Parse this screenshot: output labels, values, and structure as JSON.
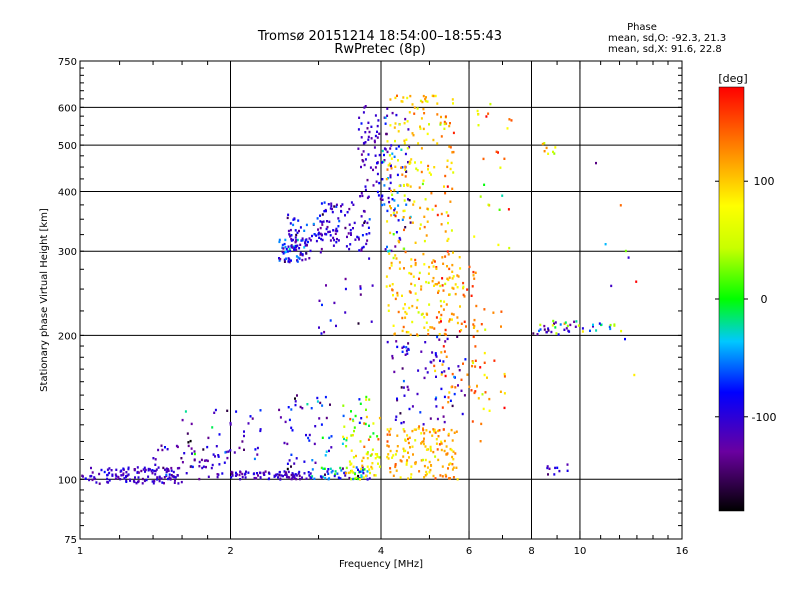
{
  "chart_data": {
    "type": "scatter",
    "title": "Tromsø 20151214 18:54:00–18:55:43",
    "subtitle": "RwPretec (8p)",
    "xlabel": "Frequency [MHz]",
    "ylabel": "Stationary phase Virtual Height [km]",
    "x_scale": "log",
    "y_scale": "log",
    "xlim": [
      1,
      16
    ],
    "ylim": [
      75,
      750
    ],
    "x_ticks": [
      1,
      2,
      4,
      6,
      8,
      10,
      16
    ],
    "x_tick_labels": [
      "1",
      "2",
      "4",
      "6",
      "8",
      "10",
      "16"
    ],
    "y_ticks": [
      75,
      100,
      200,
      300,
      400,
      500,
      600,
      750
    ],
    "y_tick_labels": [
      "75",
      "100",
      "200",
      "300",
      "400",
      "500",
      "600",
      "750"
    ],
    "grid": true,
    "stats": {
      "heading": "Phase",
      "line_o": "mean, sd,O: -92.3, 21.3",
      "line_x": "mean, sd,X:  91.6, 22.8"
    },
    "colorbar": {
      "label": "[deg]",
      "range": [
        -180,
        180
      ],
      "ticks": [
        100,
        0,
        -100
      ],
      "tick_labels": [
        "100",
        "0",
        "-100"
      ]
    },
    "clusters": [
      {
        "x_range": [
          1.0,
          1.6
        ],
        "y_range": [
          98,
          106
        ],
        "phase_mean": -110,
        "phase_sd": 15,
        "count": 130
      },
      {
        "x_range": [
          1.4,
          2.0
        ],
        "y_range": [
          100,
          118
        ],
        "phase_mean": -105,
        "phase_sd": 20,
        "count": 60
      },
      {
        "x_range": [
          1.6,
          2.3
        ],
        "y_range": [
          110,
          140
        ],
        "phase_mean": -95,
        "phase_sd": 40,
        "count": 35
      },
      {
        "x_range": [
          2.0,
          2.9
        ],
        "y_range": [
          100,
          104
        ],
        "phase_mean": -110,
        "phase_sd": 15,
        "count": 90
      },
      {
        "x_range": [
          2.5,
          3.2
        ],
        "y_range": [
          105,
          150
        ],
        "phase_mean": -90,
        "phase_sd": 40,
        "count": 50
      },
      {
        "x_range": [
          2.9,
          3.8
        ],
        "y_range": [
          100,
          106
        ],
        "phase_mean": -60,
        "phase_sd": 50,
        "count": 60
      },
      {
        "x_range": [
          3.4,
          4.0
        ],
        "y_range": [
          100,
          115
        ],
        "phase_mean": 80,
        "phase_sd": 25,
        "count": 40
      },
      {
        "x_range": [
          3.3,
          4.0
        ],
        "y_range": [
          115,
          150
        ],
        "phase_mean": 20,
        "phase_sd": 70,
        "count": 40
      },
      {
        "x_range": [
          2.5,
          2.9
        ],
        "y_range": [
          285,
          320
        ],
        "phase_mean": -90,
        "phase_sd": 30,
        "count": 80
      },
      {
        "x_range": [
          2.6,
          3.2
        ],
        "y_range": [
          315,
          360
        ],
        "phase_mean": -100,
        "phase_sd": 25,
        "count": 40
      },
      {
        "x_range": [
          3.0,
          3.8
        ],
        "y_range": [
          300,
          380
        ],
        "phase_mean": -110,
        "phase_sd": 20,
        "count": 90
      },
      {
        "x_range": [
          3.0,
          3.9
        ],
        "y_range": [
          200,
          300
        ],
        "phase_mean": -110,
        "phase_sd": 20,
        "count": 20
      },
      {
        "x_range": [
          3.6,
          4.2
        ],
        "y_range": [
          380,
          610
        ],
        "phase_mean": -110,
        "phase_sd": 15,
        "count": 80
      },
      {
        "x_range": [
          4.0,
          4.6
        ],
        "y_range": [
          300,
          600
        ],
        "phase_mean": -80,
        "phase_sd": 40,
        "count": 60
      },
      {
        "x_range": [
          4.1,
          5.6
        ],
        "y_range": [
          300,
          640
        ],
        "phase_mean": 100,
        "phase_sd": 30,
        "count": 170
      },
      {
        "x_range": [
          4.1,
          5.9
        ],
        "y_range": [
          200,
          300
        ],
        "phase_mean": 100,
        "phase_sd": 30,
        "count": 140
      },
      {
        "x_range": [
          4.1,
          5.9
        ],
        "y_range": [
          130,
          200
        ],
        "phase_mean": -100,
        "phase_sd": 25,
        "count": 80
      },
      {
        "x_range": [
          4.1,
          5.7
        ],
        "y_range": [
          100,
          130
        ],
        "phase_mean": 110,
        "phase_sd": 25,
        "count": 150
      },
      {
        "x_range": [
          5.1,
          6.3
        ],
        "y_range": [
          140,
          280
        ],
        "phase_mean": 130,
        "phase_sd": 25,
        "count": 60
      },
      {
        "x_range": [
          6.0,
          7.1
        ],
        "y_range": [
          120,
          230
        ],
        "phase_mean": 120,
        "phase_sd": 40,
        "count": 35
      },
      {
        "x_range": [
          6.1,
          7.4
        ],
        "y_range": [
          300,
          660
        ],
        "phase_mean": 100,
        "phase_sd": 60,
        "count": 25
      },
      {
        "x_range": [
          8.0,
          10.4
        ],
        "y_range": [
          200,
          215
        ],
        "phase_mean": -110,
        "phase_sd": 30,
        "count": 22
      },
      {
        "x_range": [
          8.2,
          10.2
        ],
        "y_range": [
          200,
          215
        ],
        "phase_mean": 60,
        "phase_sd": 40,
        "count": 12
      },
      {
        "x_range": [
          10.4,
          12.0
        ],
        "y_range": [
          204,
          212
        ],
        "phase_mean": -60,
        "phase_sd": 60,
        "count": 12
      },
      {
        "x_range": [
          8.5,
          9.5
        ],
        "y_range": [
          102,
          108
        ],
        "phase_mean": -100,
        "phase_sd": 20,
        "count": 10
      },
      {
        "x_range": [
          8.3,
          9.0
        ],
        "y_range": [
          480,
          510
        ],
        "phase_mean": 70,
        "phase_sd": 40,
        "count": 8
      },
      {
        "x_range": [
          10.6,
          13.0
        ],
        "y_range": [
          90,
          650
        ],
        "phase_mean": 0,
        "phase_sd": 120,
        "count": 10
      }
    ]
  }
}
